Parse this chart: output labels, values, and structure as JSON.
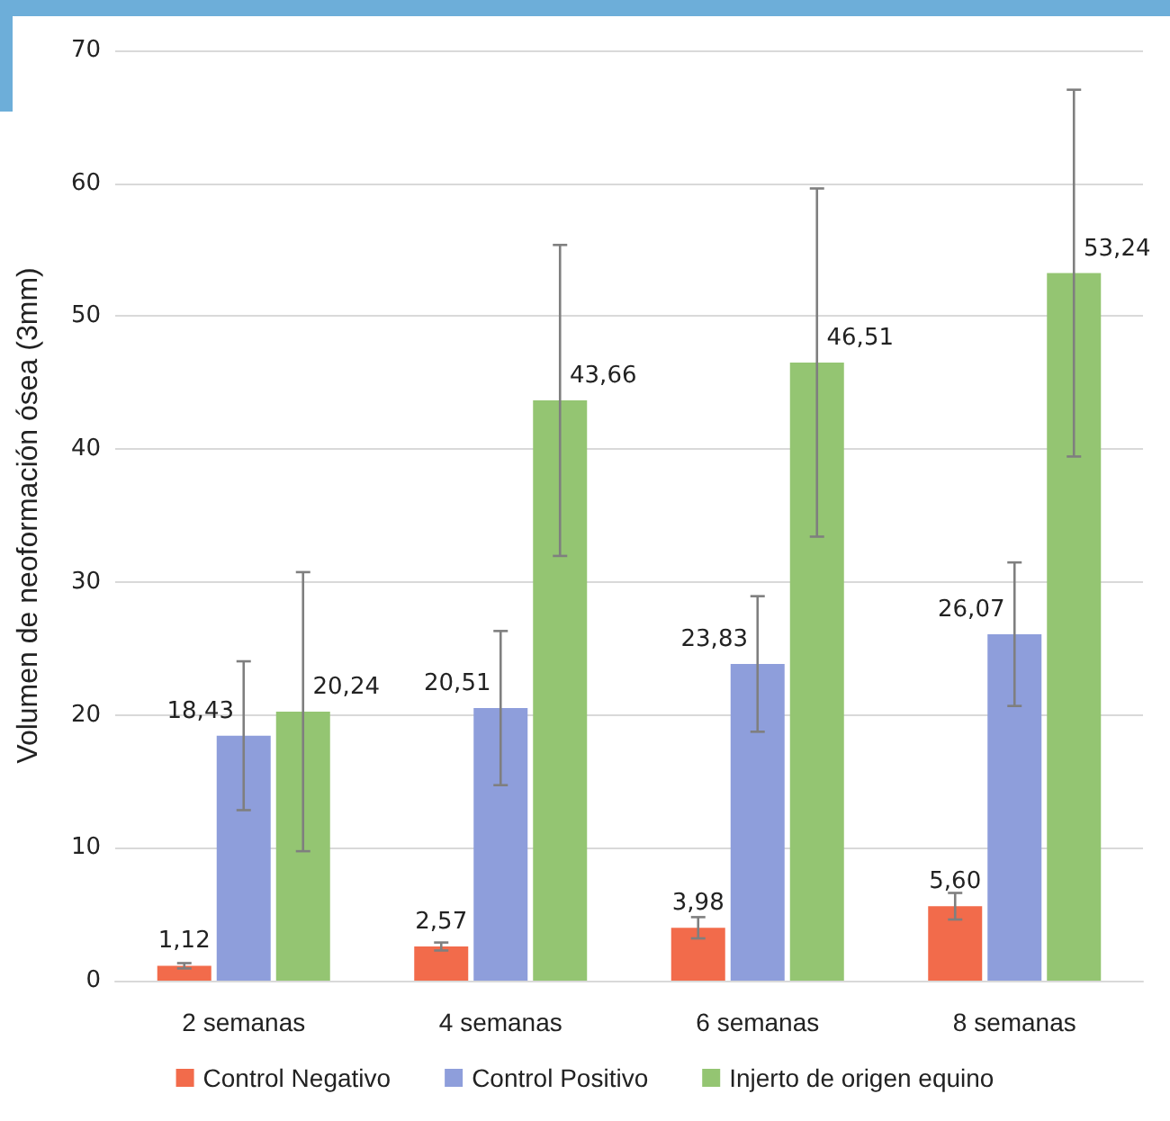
{
  "chart_data": {
    "type": "bar",
    "ylabel": "Volumen de neoformación ósea (3mm)",
    "categories": [
      "2 semanas",
      "4 semanas",
      "6 semanas",
      "8 semanas"
    ],
    "series": [
      {
        "name": "Control Negativo",
        "color": "#f26b4b",
        "values": [
          1.12,
          2.57,
          3.98,
          5.6
        ],
        "errors": [
          0.2,
          0.3,
          0.8,
          1.0
        ],
        "value_labels": [
          "1,12",
          "2,57",
          "3,98",
          "5,60"
        ]
      },
      {
        "name": "Control Positivo",
        "color": "#8e9edb",
        "values": [
          18.43,
          20.51,
          23.83,
          26.07
        ],
        "errors": [
          5.6,
          5.8,
          5.1,
          5.4
        ],
        "value_labels": [
          "18,43",
          "20,51",
          "23,83",
          "26,07"
        ]
      },
      {
        "name": "Injerto de origen equino",
        "color": "#94c572",
        "values": [
          20.24,
          43.66,
          46.51,
          53.24
        ],
        "errors": [
          10.5,
          11.7,
          13.1,
          13.8
        ],
        "value_labels": [
          "20,24",
          "43,66",
          "46,51",
          "53,24"
        ]
      }
    ],
    "ylim": [
      0,
      70
    ],
    "yticks": [
      0,
      10,
      20,
      30,
      40,
      50,
      60,
      70
    ],
    "grid": "y",
    "legend": "bottom"
  }
}
